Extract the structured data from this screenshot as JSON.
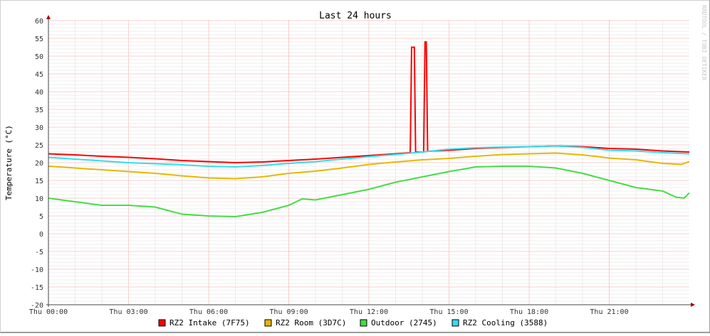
{
  "chart_data": {
    "type": "line",
    "title": "Last 24 hours",
    "ylabel": "Temperature (°C)",
    "xlabel": "",
    "watermark": "RRDTOOL / TOBI OETIKER",
    "ylim": [
      -20,
      60
    ],
    "xlim_hours": [
      0,
      24
    ],
    "grid": true,
    "legend_position": "bottom",
    "y_ticks": [
      -20,
      -15,
      -10,
      -5,
      0,
      5,
      10,
      15,
      20,
      25,
      30,
      35,
      40,
      45,
      50,
      55,
      60
    ],
    "x_ticks": [
      {
        "hour": 0,
        "label": "Thu 00:00"
      },
      {
        "hour": 3,
        "label": "Thu 03:00"
      },
      {
        "hour": 6,
        "label": "Thu 06:00"
      },
      {
        "hour": 9,
        "label": "Thu 09:00"
      },
      {
        "hour": 12,
        "label": "Thu 12:00"
      },
      {
        "hour": 15,
        "label": "Thu 15:00"
      },
      {
        "hour": 18,
        "label": "Thu 18:00"
      },
      {
        "hour": 21,
        "label": "Thu 21:00"
      }
    ],
    "series": [
      {
        "name": "RZ2 Intake (7F75)",
        "color": "#ff0000",
        "points": [
          [
            0,
            22.5
          ],
          [
            1,
            22.2
          ],
          [
            2,
            21.8
          ],
          [
            3,
            21.5
          ],
          [
            4,
            21.1
          ],
          [
            5,
            20.6
          ],
          [
            6,
            20.3
          ],
          [
            7,
            20
          ],
          [
            8,
            20.2
          ],
          [
            9,
            20.6
          ],
          [
            10,
            21
          ],
          [
            11,
            21.5
          ],
          [
            12,
            22
          ],
          [
            13,
            22.5
          ],
          [
            13.55,
            22.8
          ],
          [
            13.6,
            52.5
          ],
          [
            13.7,
            52.5
          ],
          [
            13.75,
            23
          ],
          [
            14.05,
            23
          ],
          [
            14.1,
            54
          ],
          [
            14.15,
            54
          ],
          [
            14.2,
            23.2
          ],
          [
            15,
            23.5
          ],
          [
            16,
            24
          ],
          [
            17,
            24.3
          ],
          [
            18,
            24.5
          ],
          [
            19,
            24.7
          ],
          [
            20,
            24.5
          ],
          [
            21,
            24
          ],
          [
            22,
            23.8
          ],
          [
            23,
            23.3
          ],
          [
            24,
            23
          ]
        ]
      },
      {
        "name": "RZ2 Room (3D7C)",
        "color": "#e6b800",
        "points": [
          [
            0,
            19
          ],
          [
            1,
            18.5
          ],
          [
            2,
            18
          ],
          [
            3,
            17.5
          ],
          [
            4,
            17
          ],
          [
            5,
            16.3
          ],
          [
            6,
            15.7
          ],
          [
            7,
            15.5
          ],
          [
            8,
            16
          ],
          [
            9,
            17
          ],
          [
            10,
            17.6
          ],
          [
            11,
            18.5
          ],
          [
            12,
            19.5
          ],
          [
            13,
            20.2
          ],
          [
            14,
            20.8
          ],
          [
            15,
            21.2
          ],
          [
            16,
            21.8
          ],
          [
            17,
            22.3
          ],
          [
            18,
            22.5
          ],
          [
            19,
            22.7
          ],
          [
            20,
            22.2
          ],
          [
            21,
            21.3
          ],
          [
            22,
            20.8
          ],
          [
            23,
            19.8
          ],
          [
            23.7,
            19.5
          ],
          [
            24,
            20.3
          ]
        ]
      },
      {
        "name": "Outdoor (2745)",
        "color": "#44dd44",
        "points": [
          [
            0,
            10
          ],
          [
            1,
            9
          ],
          [
            2,
            8
          ],
          [
            3,
            8
          ],
          [
            4,
            7.5
          ],
          [
            4.5,
            6.5
          ],
          [
            5,
            5.5
          ],
          [
            6,
            5
          ],
          [
            7,
            4.8
          ],
          [
            8,
            6
          ],
          [
            9,
            8
          ],
          [
            9.5,
            9.8
          ],
          [
            10,
            9.5
          ],
          [
            11,
            11
          ],
          [
            12,
            12.5
          ],
          [
            13,
            14.5
          ],
          [
            14,
            16
          ],
          [
            15,
            17.5
          ],
          [
            16,
            18.8
          ],
          [
            17,
            19
          ],
          [
            18,
            19
          ],
          [
            19,
            18.5
          ],
          [
            20,
            17
          ],
          [
            21,
            15
          ],
          [
            21.5,
            14
          ],
          [
            22,
            13
          ],
          [
            23,
            12
          ],
          [
            23.5,
            10.3
          ],
          [
            23.8,
            10
          ],
          [
            24,
            11.5
          ]
        ]
      },
      {
        "name": "RZ2 Cooling (3588)",
        "color": "#33ddee",
        "points": [
          [
            0,
            21.5
          ],
          [
            1,
            21
          ],
          [
            2,
            20.5
          ],
          [
            3,
            20
          ],
          [
            4,
            19.7
          ],
          [
            5,
            19.4
          ],
          [
            6,
            19
          ],
          [
            7,
            18.8
          ],
          [
            8,
            19.2
          ],
          [
            9,
            19.8
          ],
          [
            10,
            20.3
          ],
          [
            11,
            21
          ],
          [
            12,
            21.7
          ],
          [
            13,
            22.3
          ],
          [
            14,
            23
          ],
          [
            15,
            23.8
          ],
          [
            16,
            24.2
          ],
          [
            17,
            24.4
          ],
          [
            18,
            24.5
          ],
          [
            19,
            24.7
          ],
          [
            20,
            24.3
          ],
          [
            21,
            23.5
          ],
          [
            22,
            23.3
          ],
          [
            23,
            22.8
          ],
          [
            24,
            22.5
          ]
        ]
      }
    ]
  }
}
